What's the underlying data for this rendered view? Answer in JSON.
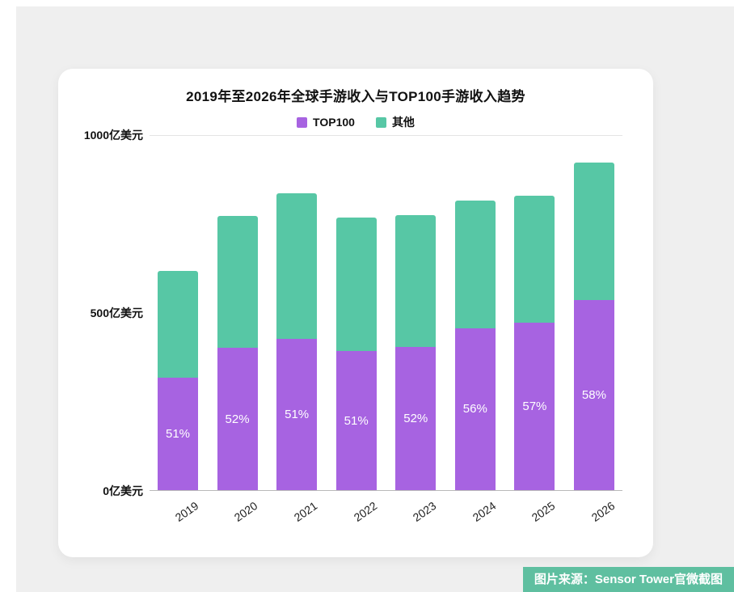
{
  "chart_data": {
    "type": "bar",
    "stacked": true,
    "title": "2019年至2026年全球手游收入与TOP100手游收入趋势",
    "categories": [
      "2019",
      "2020",
      "2021",
      "2022",
      "2023",
      "2024",
      "2025",
      "2026"
    ],
    "series": [
      {
        "name": "TOP100",
        "color": "#a763e1",
        "values": [
          315,
          400,
          425,
          390,
          402,
          455,
          470,
          533
        ]
      },
      {
        "name": "其他",
        "color": "#57c7a5",
        "values": [
          300,
          370,
          410,
          375,
          371,
          358,
          357,
          387
        ]
      }
    ],
    "bar_labels": [
      "51%",
      "52%",
      "51%",
      "51%",
      "52%",
      "56%",
      "57%",
      "58%"
    ],
    "yticks": [
      {
        "value": 1000,
        "label": "1000亿美元"
      },
      {
        "value": 500,
        "label": "500亿美元"
      },
      {
        "value": 0,
        "label": "0亿美元"
      }
    ],
    "ylim": [
      0,
      1000
    ],
    "unit": "亿美元",
    "legend_position": "top",
    "grid": "top-line-only"
  },
  "caption": {
    "text": "图片来源：Sensor Tower官微截图",
    "background": "#5fbfa0"
  }
}
